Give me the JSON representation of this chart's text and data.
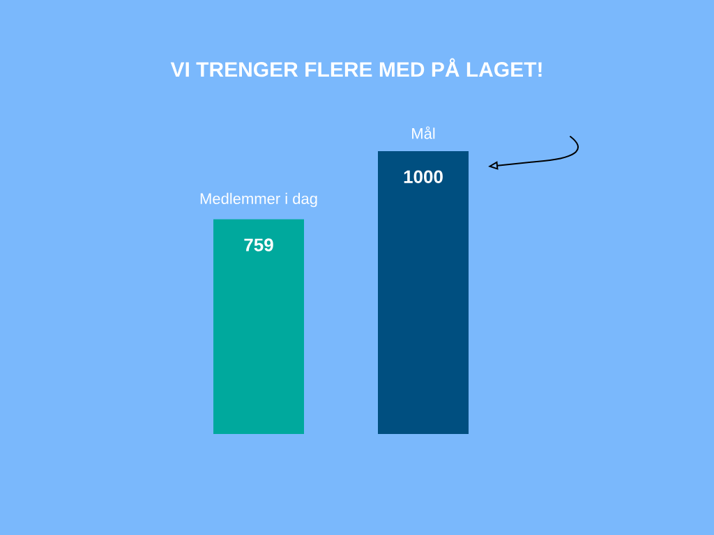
{
  "chart_data": {
    "type": "bar",
    "title": "VI TRENGER FLERE MED PÅ LAGET!",
    "categories": [
      "Medlemmer i dag",
      "Mål"
    ],
    "values": [
      759,
      1000
    ],
    "colors": [
      "#00a99d",
      "#004f80"
    ],
    "data_labels": true
  }
}
